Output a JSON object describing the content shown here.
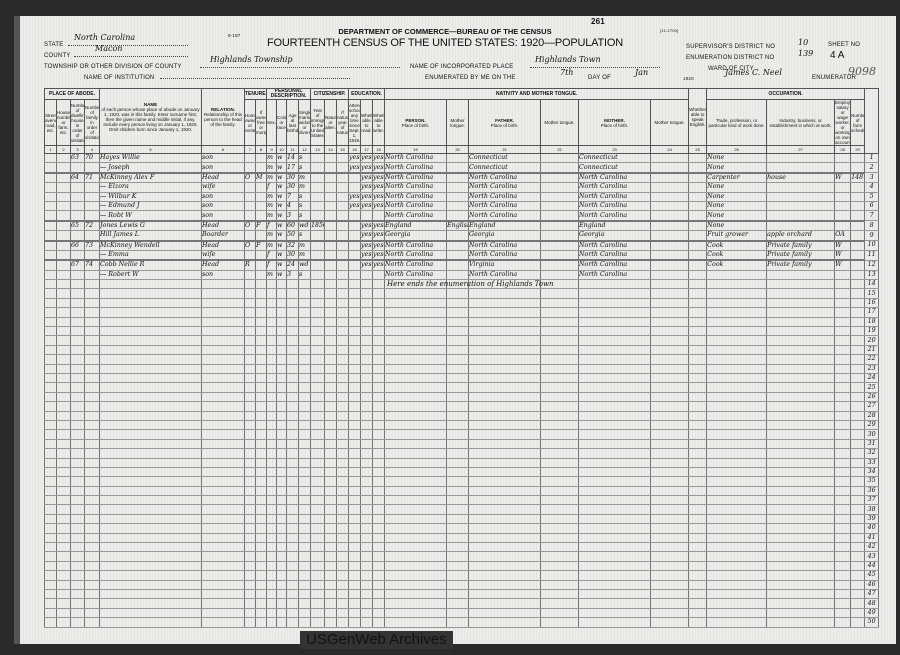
{
  "header": {
    "form_no": "8-187",
    "page_no": "261",
    "form_ref": "[11-2700]",
    "department": "DEPARTMENT OF COMMERCE—BUREAU OF THE CENSUS",
    "title": "FOURTEENTH CENSUS OF THE UNITED STATES: 1920—POPULATION",
    "state_label": "State",
    "state": "North Carolina",
    "county_label": "County",
    "county": "Macon",
    "township_label": "Township or other division of county",
    "township": "Highlands Township",
    "institution_label": "Name of Institution",
    "place_label": "Name of incorporated place",
    "place": "Highlands Town",
    "enumerated_label": "Enumerated by me on the",
    "day": "7th",
    "day_of_label": "day of",
    "month": "Jan",
    "year": "1920",
    "enumerator": "James C. Neel",
    "enumerator_label": "Enumerator",
    "supervisor_label": "Supervisor's District No",
    "supervisor_district": "10",
    "enumeration_label": "Enumeration District No",
    "enumeration_district": "139",
    "sheet_label": "Sheet No",
    "sheet": "4 A",
    "ward_label": "Ward of city",
    "stamp": "9098"
  },
  "columns": {
    "place_of_abode": "PLACE OF ABODE.",
    "abode_sub": [
      "Street, avenue, road, etc.",
      "House number or farm, etc.",
      "Number of dwelling house in order of visitation.",
      "Number of family in order of visitation."
    ],
    "name": "NAME",
    "name_desc": "of each person whose place of abode on January 1, 1920, was in this family. Enter surname first, then the given name and middle initial, if any. Include every person living on January 1, 1920. Omit children born since January 1, 1920.",
    "relation": "RELATION.",
    "relation_desc": "Relationship of this person to the head of the family.",
    "tenure": "TENURE.",
    "tenure_sub": [
      "Home owned or rented.",
      "If owned, free or mortgaged."
    ],
    "personal": "PERSONAL DESCRIPTION.",
    "personal_sub": [
      "Sex.",
      "Color or race.",
      "Age at last birthday.",
      "Single, married, widowed, or divorced."
    ],
    "citizenship": "CITIZENSHIP.",
    "citizenship_sub": [
      "Year of immigration to the United States.",
      "Naturalized or alien.",
      "If naturalized, year of naturalization."
    ],
    "education": "EDUCATION.",
    "education_sub": [
      "Attended school any time since Sept. 1, 1919.",
      "Whether able to read.",
      "Whether able to write."
    ],
    "nativity": "NATIVITY AND MOTHER TONGUE.",
    "person": "PERSON.",
    "father": "FATHER.",
    "mother": "MOTHER.",
    "place_of_birth": "Place of birth.",
    "mother_tongue": "Mother tongue.",
    "english": "Whether able to speak English.",
    "occupation": "OCCUPATION.",
    "occupation_sub": [
      "Trade, profession, or particular kind of work done.",
      "Industry, business, or establishment in which at work.",
      "Employer, salary or wage worker, or working on own account.",
      "Number of farm schedule."
    ],
    "numbers": [
      "1",
      "2",
      "3",
      "4",
      "5",
      "6",
      "7",
      "8",
      "9",
      "10",
      "11",
      "12",
      "13",
      "14",
      "15",
      "16",
      "17",
      "18",
      "19",
      "20",
      "21",
      "22",
      "23",
      "24",
      "25",
      "26",
      "27",
      "28",
      "29"
    ]
  },
  "rows": [
    {
      "dw": "63",
      "fam": "70",
      "name": "Hayes  Willie",
      "rel": "son",
      "sex": "m",
      "col": "w",
      "age": "14",
      "mar": "s",
      "sch": "yes",
      "rd": "yes",
      "wr": "yes",
      "pob": "North Carolina",
      "fpob": "Connecticut",
      "mpob": "Connecticut",
      "occ": "None"
    },
    {
      "name": "—  Joseph",
      "rel": "son",
      "sex": "m",
      "col": "w",
      "age": "17",
      "mar": "s",
      "sch": "yes",
      "rd": "yes",
      "wr": "yes",
      "pob": "North Carolina",
      "fpob": "Connecticut",
      "mpob": "Connecticut",
      "occ": "None"
    },
    {
      "dw": "64",
      "fam": "71",
      "name": "McKinney  Alex F",
      "rel": "Head",
      "own": "O",
      "free": "M",
      "sex": "m",
      "col": "w",
      "age": "30",
      "mar": "m",
      "rd": "yes",
      "wr": "yes",
      "pob": "North Carolina",
      "fpob": "North Carolina",
      "mpob": "North Carolina",
      "occ": "Carpenter",
      "ind": "house",
      "emp": "W",
      "farm": "148"
    },
    {
      "name": "—  Elzora",
      "rel": "wife",
      "sex": "f",
      "col": "w",
      "age": "30",
      "mar": "m",
      "rd": "yes",
      "wr": "yes",
      "pob": "North Carolina",
      "fpob": "North Carolina",
      "mpob": "North Carolina",
      "occ": "None"
    },
    {
      "name": "—  Wilbur K",
      "rel": "son",
      "sex": "m",
      "col": "w",
      "age": "7",
      "mar": "s",
      "sch": "yes",
      "rd": "yes",
      "wr": "yes",
      "pob": "North Carolina",
      "fpob": "North Carolina",
      "mpob": "North Carolina",
      "occ": "None"
    },
    {
      "name": "—  Edmund J",
      "rel": "son",
      "sex": "m",
      "col": "w",
      "age": "4",
      "mar": "s",
      "sch": "yes",
      "rd": "yes",
      "wr": "yes",
      "pob": "North Carolina",
      "fpob": "North Carolina",
      "mpob": "North Carolina",
      "occ": "None"
    },
    {
      "name": "—  Robt W",
      "rel": "son",
      "sex": "m",
      "col": "w",
      "age": "3",
      "mar": "s",
      "pob": "North Carolina",
      "fpob": "North Carolina",
      "mpob": "North Carolina",
      "occ": "None"
    },
    {
      "dw": "65",
      "fam": "72",
      "name": "Jones  Lewis G",
      "rel": "Head",
      "own": "O",
      "free": "F",
      "sex": "f",
      "col": "w",
      "age": "60",
      "mar": "wd",
      "imm": "1850",
      "rd": "yes",
      "wr": "yes",
      "pob": "England",
      "tongue": "English",
      "fpob": "England",
      "mpob": "England",
      "occ": "None"
    },
    {
      "name": "Hill  James L",
      "rel": "Boarder",
      "sex": "m",
      "col": "w",
      "age": "50",
      "mar": "s",
      "rd": "yes",
      "wr": "yes",
      "pob": "Georgia",
      "fpob": "Georgia",
      "mpob": "Georgia",
      "occ": "Fruit grower",
      "ind": "apple orchard",
      "emp": "OA"
    },
    {
      "dw": "66",
      "fam": "73",
      "name": "McKinney  Wendell",
      "rel": "Head",
      "own": "O",
      "free": "F",
      "sex": "m",
      "col": "w",
      "age": "32",
      "mar": "m",
      "rd": "yes",
      "wr": "yes",
      "pob": "North Carolina",
      "fpob": "North Carolina",
      "mpob": "North Carolina",
      "occ": "Cook",
      "ind": "Private family",
      "emp": "W"
    },
    {
      "name": "—  Emma",
      "rel": "wife",
      "sex": "f",
      "col": "w",
      "age": "30",
      "mar": "m",
      "rd": "yes",
      "wr": "yes",
      "pob": "North Carolina",
      "fpob": "North Carolina",
      "mpob": "North Carolina",
      "occ": "Cook",
      "ind": "Private family",
      "emp": "W"
    },
    {
      "dw": "67",
      "fam": "74",
      "name": "Cobb  Nellie R",
      "rel": "Head",
      "own": "R",
      "sex": "f",
      "col": "w",
      "age": "24",
      "mar": "wd",
      "rd": "yes",
      "wr": "yes",
      "pob": "North Carolina",
      "fpob": "Virginia",
      "mpob": "North Carolina",
      "occ": "Cook",
      "ind": "Private family",
      "emp": "W"
    },
    {
      "name": "—  Robert W",
      "rel": "son",
      "sex": "m",
      "col": "w",
      "age": "3",
      "mar": "s",
      "pob": "North Carolina",
      "fpob": "North Carolina",
      "mpob": "North Carolina"
    }
  ],
  "end_note": "Here ends the enumeration of Highlands Town",
  "total_lines": 50,
  "footer": "USGenWeb Archives"
}
